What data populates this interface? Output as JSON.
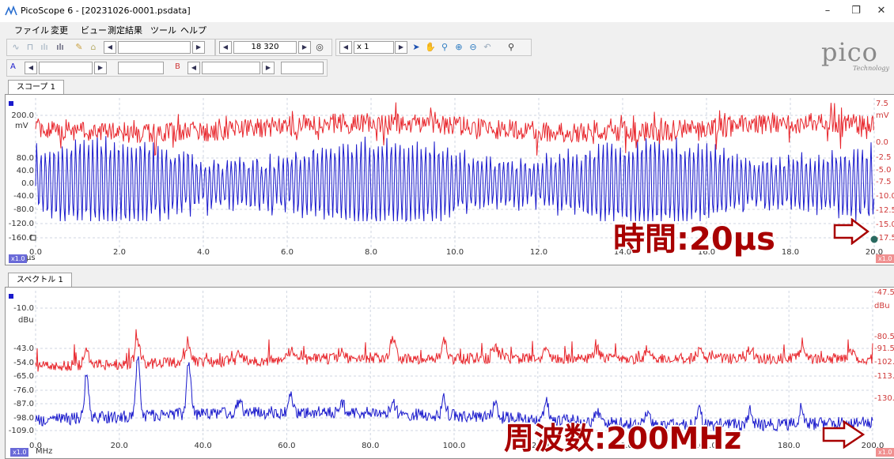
{
  "window": {
    "title": "PicoScope 6 - [20231026-0001.psdata]",
    "minimize": "–",
    "restore": "❐",
    "close": "✕"
  },
  "menu": [
    "ファイル",
    "変更",
    "ビュー",
    "測定結果",
    "ツール",
    "ヘルプ"
  ],
  "toolbar": {
    "timebase_value": "18 320",
    "multiplier_value": "x 1",
    "channel_a": "A",
    "channel_b": "B"
  },
  "logo": {
    "main": "pico",
    "sub": "Technology"
  },
  "scope": {
    "tab_label": "スコープ 1",
    "left_unit": "mV",
    "left_ticks": [
      "200.0",
      "80.0",
      "40.0",
      "0.0",
      "-40.0",
      "-80.0",
      "-120.0",
      "-160.0"
    ],
    "right_unit": "mV",
    "right_ticks": [
      "7.5",
      "0.0",
      "-2.5",
      "-5.0",
      "-7.5",
      "-10.0",
      "-12.5",
      "-15.0",
      "-17.5"
    ],
    "x_ticks": [
      "0.0",
      "2.0",
      "4.0",
      "6.0",
      "8.0",
      "10.0",
      "12.0",
      "14.0",
      "16.0",
      "18.0",
      "20.0"
    ],
    "x_unit": "μs",
    "zoom_chip": "x1.0",
    "zoom_chip_right": "x1.0",
    "overlay": "時間:20μs"
  },
  "spectrum": {
    "tab_label": "スペクトル 1",
    "left_unit": "dBu",
    "left_ticks": [
      "-10.0",
      "-43.0",
      "-54.0",
      "-65.0",
      "-76.0",
      "-87.0",
      "-98.0",
      "-109.0"
    ],
    "right_unit": "dBu",
    "right_ticks": [
      "-47.5",
      "-80.5",
      "-91.5",
      "-102.",
      "-113.",
      "-130."
    ],
    "x_ticks": [
      "0.0",
      "20.0",
      "40.0",
      "60.0",
      "80.0",
      "100.0",
      "120.0",
      "140.0",
      "160.0",
      "180.0",
      "200.0"
    ],
    "x_unit": "MHz",
    "zoom_chip": "x1.0",
    "zoom_chip_right": "x1.0",
    "overlay": "周波数:200MHz"
  },
  "colors": {
    "channel_a": "#1a1acc",
    "channel_b": "#e8262c",
    "overlay_text": "#a80000",
    "grid": "#cfd6e0"
  },
  "chart_data": [
    {
      "type": "line",
      "title": "",
      "xlabel": "μs",
      "ylabel": "mV",
      "xlim": [
        0,
        20
      ],
      "ylim": [
        -160,
        200
      ],
      "grid": true,
      "series": [
        {
          "color": "#e8262c",
          "description": "dense noisy trace centered near +140 mV"
        },
        {
          "color": "#1a1acc",
          "description": "dense oscillating trace between about -90 and +100 mV"
        }
      ]
    },
    {
      "type": "line",
      "title": "",
      "xlabel": "MHz",
      "ylabel": "dBu",
      "xlim": [
        0,
        200
      ],
      "grid": true,
      "series": [
        {
          "color": "#e8262c",
          "description": "noise floor near -60 dBu with peaks"
        },
        {
          "color": "#1a1acc",
          "description": "noise floor near -100 dBu with harmonic peaks at 12, 24, 36 MHz"
        }
      ]
    }
  ]
}
